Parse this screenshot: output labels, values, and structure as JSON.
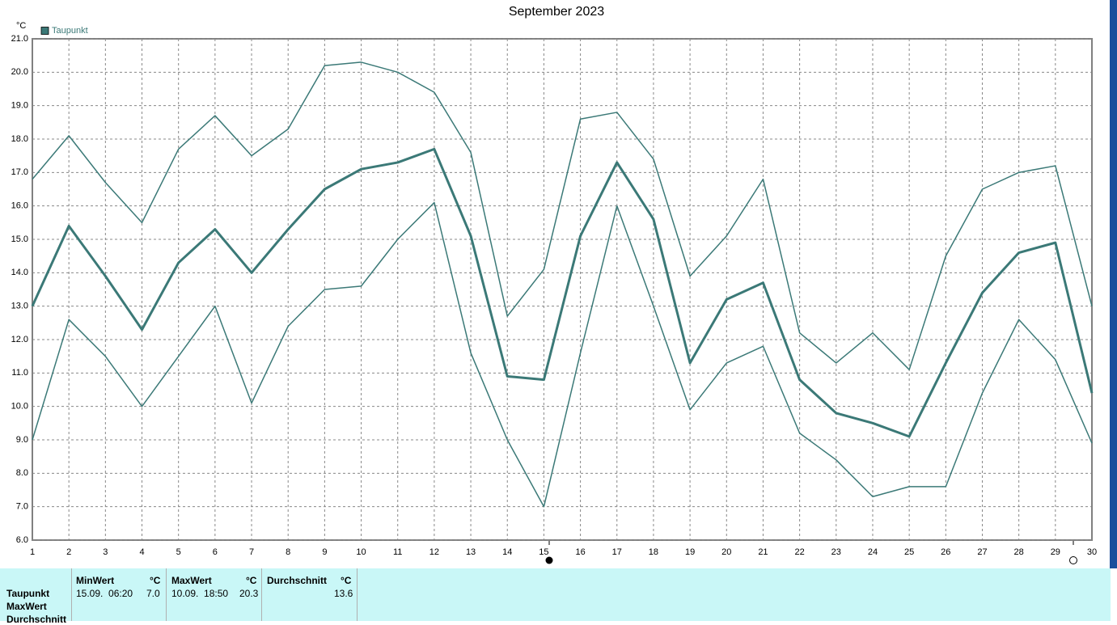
{
  "chart_data": {
    "type": "line",
    "title": "September 2023",
    "y_unit": "°C",
    "categories": [
      "1",
      "2",
      "3",
      "4",
      "5",
      "6",
      "7",
      "8",
      "9",
      "10",
      "11",
      "12",
      "13",
      "14",
      "15",
      "16",
      "17",
      "18",
      "19",
      "20",
      "21",
      "22",
      "23",
      "24",
      "25",
      "26",
      "27",
      "28",
      "29",
      "30"
    ],
    "series": [
      {
        "name": "Taupunkt",
        "color": "#3b7977",
        "width": 3,
        "values": [
          13.0,
          15.4,
          13.9,
          12.3,
          14.3,
          15.3,
          14.0,
          15.3,
          16.5,
          17.1,
          17.3,
          17.7,
          15.1,
          10.9,
          10.8,
          15.1,
          17.3,
          15.6,
          11.3,
          13.2,
          13.7,
          10.8,
          9.8,
          9.5,
          9.1,
          11.3,
          13.4,
          14.6,
          14.9,
          10.4
        ]
      },
      {
        "color": "#3b7977",
        "width": 1.5,
        "values": [
          16.8,
          18.1,
          16.7,
          15.5,
          17.7,
          18.7,
          17.5,
          18.3,
          20.2,
          20.3,
          20.0,
          19.4,
          17.6,
          12.7,
          14.1,
          18.6,
          18.8,
          17.4,
          13.9,
          15.1,
          16.8,
          12.2,
          11.3,
          12.2,
          11.1,
          14.5,
          16.5,
          17.0,
          17.2,
          13.0
        ]
      },
      {
        "color": "#3b7977",
        "width": 1.5,
        "values": [
          9.0,
          12.6,
          11.5,
          10.0,
          11.5,
          13.0,
          10.1,
          12.4,
          13.5,
          13.6,
          15.0,
          16.1,
          11.6,
          9.0,
          7.0,
          11.6,
          16.0,
          13.0,
          9.9,
          11.3,
          11.8,
          9.2,
          8.4,
          7.3,
          7.6,
          7.6,
          10.4,
          12.6,
          11.4,
          8.9
        ]
      }
    ],
    "ylim": [
      6,
      21
    ],
    "yticks": [
      {
        "value": 6,
        "label": "6.0"
      },
      {
        "value": 7,
        "label": "7.0"
      },
      {
        "value": 8,
        "label": "8.0"
      },
      {
        "value": 9,
        "label": "9.0"
      },
      {
        "value": 10,
        "label": "10.0"
      },
      {
        "value": 11,
        "label": "11.0"
      },
      {
        "value": 12,
        "label": "12.0"
      },
      {
        "value": 13,
        "label": "13.0"
      },
      {
        "value": 14,
        "label": "14.0"
      },
      {
        "value": 15,
        "label": "15.0"
      },
      {
        "value": 16,
        "label": "16.0"
      },
      {
        "value": 17,
        "label": "17.0"
      },
      {
        "value": 18,
        "label": "18.0"
      },
      {
        "value": 19,
        "label": "19.0"
      },
      {
        "value": 20,
        "label": "20.0"
      },
      {
        "value": 21,
        "label": "21.0"
      }
    ],
    "grid": true,
    "legend": "top-left"
  },
  "table": {
    "headers": [
      "MinWert",
      "°C",
      "MaxWert",
      "°C",
      "Durchschnitt",
      "°C"
    ],
    "row_labels": [
      "Taupunkt",
      "MaxWert",
      "Durchschnitt"
    ],
    "rows": [
      [
        "15.09.  06:20",
        "7.0",
        "10.09.  18:50",
        "20.3",
        "13.6"
      ]
    ]
  }
}
